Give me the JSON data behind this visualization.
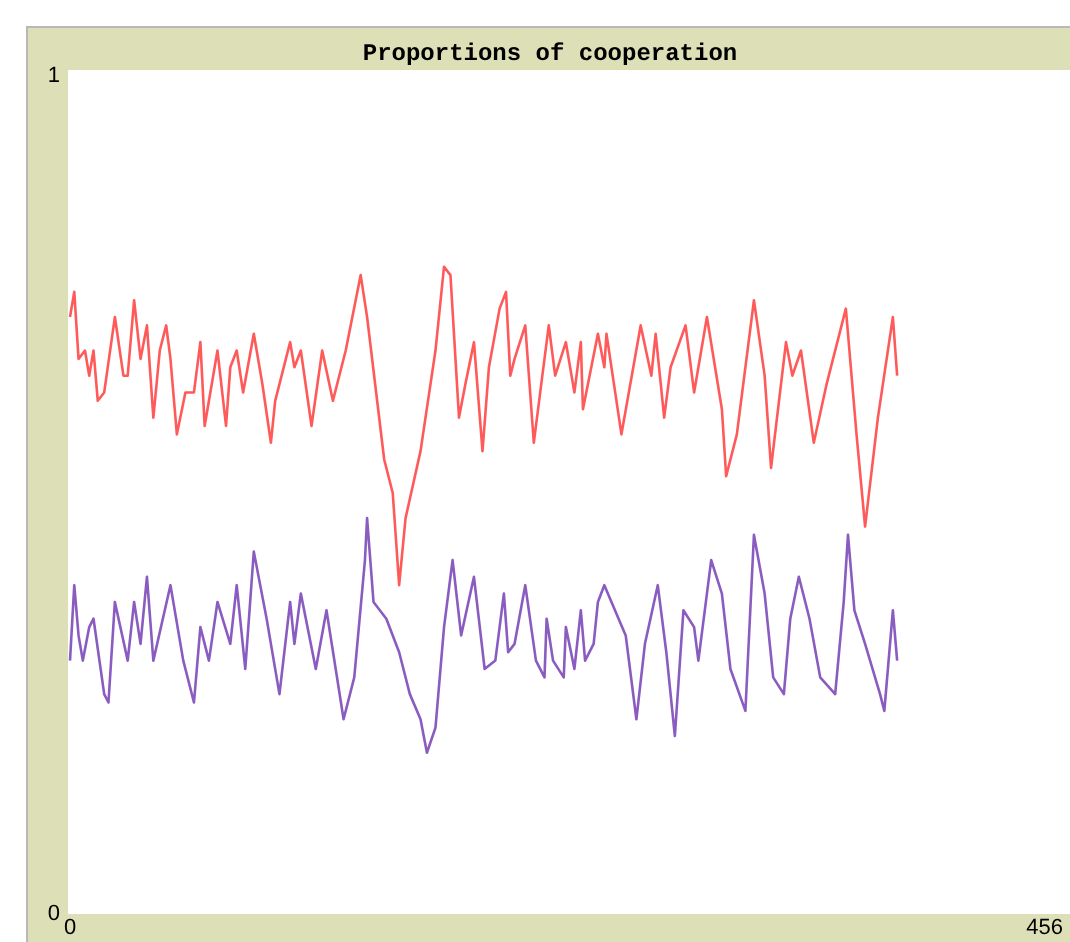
{
  "chart_data": {
    "type": "line",
    "title": "Proportions of cooperation",
    "xlim": [
      0,
      466
    ],
    "ylim": [
      0,
      1
    ],
    "xticks": [
      0,
      456
    ],
    "yticks": [
      0,
      1
    ],
    "grid": false,
    "marker": "none",
    "line_style": "solid",
    "series": [
      {
        "color": "#ff5a5a",
        "x": [
          0,
          2,
          4,
          7,
          9,
          11,
          13,
          16,
          21,
          25,
          27,
          30,
          33,
          36,
          39,
          42,
          45,
          47,
          50,
          54,
          58,
          61,
          63,
          69,
          73,
          75,
          78,
          81,
          86,
          90,
          94,
          96,
          103,
          105,
          108,
          113,
          118,
          123,
          129,
          136,
          139,
          147,
          151,
          154,
          157,
          164,
          171,
          175,
          178,
          182,
          185,
          189,
          193,
          196,
          201,
          204,
          206,
          208,
          213,
          217,
          220,
          224,
          227,
          232,
          236,
          239,
          240,
          247,
          250,
          251,
          258,
          267,
          272,
          274,
          278,
          281,
          288,
          292,
          298,
          305,
          307,
          312,
          320,
          325,
          328,
          335,
          338,
          342,
          348,
          354,
          363,
          368,
          372,
          378,
          385,
          387
        ],
        "values": [
          0.71,
          0.74,
          0.66,
          0.67,
          0.64,
          0.67,
          0.61,
          0.62,
          0.71,
          0.64,
          0.64,
          0.73,
          0.66,
          0.7,
          0.59,
          0.67,
          0.7,
          0.66,
          0.57,
          0.62,
          0.62,
          0.68,
          0.58,
          0.67,
          0.58,
          0.65,
          0.67,
          0.62,
          0.69,
          0.63,
          0.56,
          0.61,
          0.68,
          0.65,
          0.67,
          0.58,
          0.67,
          0.61,
          0.67,
          0.76,
          0.71,
          0.54,
          0.5,
          0.39,
          0.47,
          0.55,
          0.67,
          0.77,
          0.76,
          0.59,
          0.63,
          0.68,
          0.55,
          0.65,
          0.72,
          0.74,
          0.64,
          0.66,
          0.7,
          0.56,
          0.62,
          0.7,
          0.64,
          0.68,
          0.62,
          0.68,
          0.6,
          0.69,
          0.65,
          0.69,
          0.57,
          0.7,
          0.64,
          0.69,
          0.59,
          0.65,
          0.7,
          0.62,
          0.71,
          0.6,
          0.52,
          0.57,
          0.73,
          0.64,
          0.53,
          0.68,
          0.64,
          0.67,
          0.56,
          0.63,
          0.72,
          0.57,
          0.46,
          0.59,
          0.71,
          0.64
        ]
      },
      {
        "color": "#8a5cc0",
        "x": [
          0,
          2,
          4,
          6,
          9,
          11,
          16,
          18,
          21,
          27,
          30,
          33,
          36,
          39,
          47,
          53,
          58,
          61,
          65,
          69,
          75,
          78,
          82,
          86,
          92,
          98,
          103,
          105,
          108,
          115,
          120,
          128,
          133,
          138,
          139,
          142,
          148,
          154,
          159,
          164,
          167,
          171,
          175,
          179,
          183,
          189,
          194,
          199,
          203,
          205,
          208,
          213,
          218,
          222,
          223,
          226,
          231,
          232,
          236,
          239,
          241,
          245,
          247,
          250,
          260,
          265,
          269,
          275,
          279,
          283,
          287,
          292,
          294,
          300,
          305,
          309,
          316,
          320,
          325,
          329,
          334,
          337,
          341,
          346,
          351,
          358,
          362,
          364,
          367,
          372,
          379,
          381,
          385,
          387
        ],
        "values": [
          0.3,
          0.39,
          0.33,
          0.3,
          0.34,
          0.35,
          0.26,
          0.25,
          0.37,
          0.3,
          0.37,
          0.32,
          0.4,
          0.3,
          0.39,
          0.3,
          0.25,
          0.34,
          0.3,
          0.37,
          0.32,
          0.39,
          0.29,
          0.43,
          0.35,
          0.26,
          0.37,
          0.32,
          0.38,
          0.29,
          0.36,
          0.23,
          0.28,
          0.42,
          0.47,
          0.37,
          0.35,
          0.31,
          0.26,
          0.23,
          0.19,
          0.22,
          0.34,
          0.42,
          0.33,
          0.4,
          0.29,
          0.3,
          0.38,
          0.31,
          0.32,
          0.39,
          0.3,
          0.28,
          0.35,
          0.3,
          0.28,
          0.34,
          0.29,
          0.36,
          0.3,
          0.32,
          0.37,
          0.39,
          0.33,
          0.23,
          0.32,
          0.39,
          0.31,
          0.21,
          0.36,
          0.34,
          0.3,
          0.42,
          0.38,
          0.29,
          0.24,
          0.45,
          0.38,
          0.28,
          0.26,
          0.35,
          0.4,
          0.35,
          0.28,
          0.26,
          0.37,
          0.45,
          0.36,
          0.32,
          0.26,
          0.24,
          0.36,
          0.3
        ]
      }
    ]
  }
}
